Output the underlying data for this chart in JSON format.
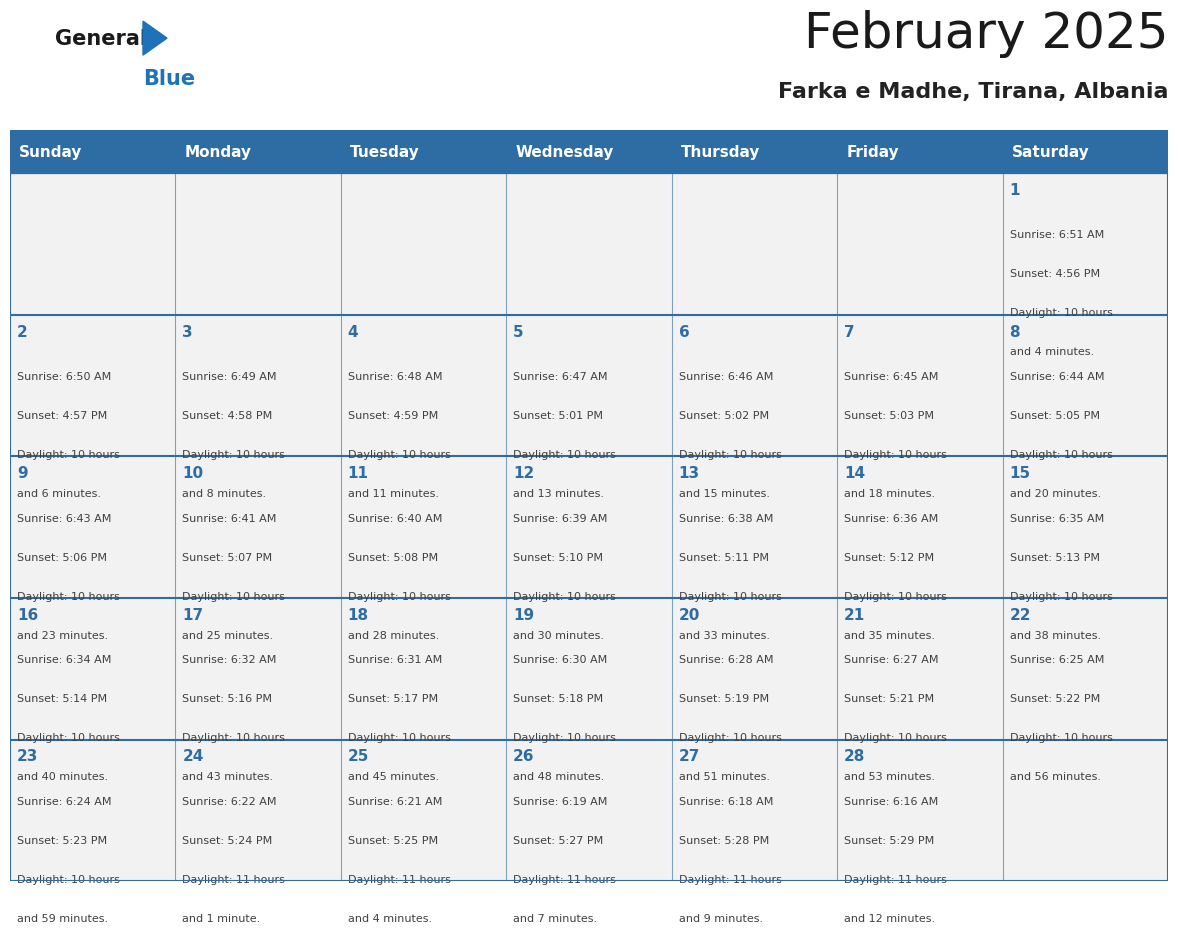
{
  "title": "February 2025",
  "subtitle": "Farka e Madhe, Tirana, Albania",
  "days_of_week": [
    "Sunday",
    "Monday",
    "Tuesday",
    "Wednesday",
    "Thursday",
    "Friday",
    "Saturday"
  ],
  "header_bg": "#2E6DA4",
  "header_text": "#FFFFFF",
  "cell_bg": "#F2F2F2",
  "border_color": "#2E6DA4",
  "day_num_color": "#2E6DA4",
  "cell_text_color": "#404040",
  "logo_general_color": "#1a1a1a",
  "logo_blue_color": "#1E72B8",
  "weeks": [
    [
      {
        "day": null,
        "info": ""
      },
      {
        "day": null,
        "info": ""
      },
      {
        "day": null,
        "info": ""
      },
      {
        "day": null,
        "info": ""
      },
      {
        "day": null,
        "info": ""
      },
      {
        "day": null,
        "info": ""
      },
      {
        "day": 1,
        "info": "Sunrise: 6:51 AM\nSunset: 4:56 PM\nDaylight: 10 hours\nand 4 minutes."
      }
    ],
    [
      {
        "day": 2,
        "info": "Sunrise: 6:50 AM\nSunset: 4:57 PM\nDaylight: 10 hours\nand 6 minutes."
      },
      {
        "day": 3,
        "info": "Sunrise: 6:49 AM\nSunset: 4:58 PM\nDaylight: 10 hours\nand 8 minutes."
      },
      {
        "day": 4,
        "info": "Sunrise: 6:48 AM\nSunset: 4:59 PM\nDaylight: 10 hours\nand 11 minutes."
      },
      {
        "day": 5,
        "info": "Sunrise: 6:47 AM\nSunset: 5:01 PM\nDaylight: 10 hours\nand 13 minutes."
      },
      {
        "day": 6,
        "info": "Sunrise: 6:46 AM\nSunset: 5:02 PM\nDaylight: 10 hours\nand 15 minutes."
      },
      {
        "day": 7,
        "info": "Sunrise: 6:45 AM\nSunset: 5:03 PM\nDaylight: 10 hours\nand 18 minutes."
      },
      {
        "day": 8,
        "info": "Sunrise: 6:44 AM\nSunset: 5:05 PM\nDaylight: 10 hours\nand 20 minutes."
      }
    ],
    [
      {
        "day": 9,
        "info": "Sunrise: 6:43 AM\nSunset: 5:06 PM\nDaylight: 10 hours\nand 23 minutes."
      },
      {
        "day": 10,
        "info": "Sunrise: 6:41 AM\nSunset: 5:07 PM\nDaylight: 10 hours\nand 25 minutes."
      },
      {
        "day": 11,
        "info": "Sunrise: 6:40 AM\nSunset: 5:08 PM\nDaylight: 10 hours\nand 28 minutes."
      },
      {
        "day": 12,
        "info": "Sunrise: 6:39 AM\nSunset: 5:10 PM\nDaylight: 10 hours\nand 30 minutes."
      },
      {
        "day": 13,
        "info": "Sunrise: 6:38 AM\nSunset: 5:11 PM\nDaylight: 10 hours\nand 33 minutes."
      },
      {
        "day": 14,
        "info": "Sunrise: 6:36 AM\nSunset: 5:12 PM\nDaylight: 10 hours\nand 35 minutes."
      },
      {
        "day": 15,
        "info": "Sunrise: 6:35 AM\nSunset: 5:13 PM\nDaylight: 10 hours\nand 38 minutes."
      }
    ],
    [
      {
        "day": 16,
        "info": "Sunrise: 6:34 AM\nSunset: 5:14 PM\nDaylight: 10 hours\nand 40 minutes."
      },
      {
        "day": 17,
        "info": "Sunrise: 6:32 AM\nSunset: 5:16 PM\nDaylight: 10 hours\nand 43 minutes."
      },
      {
        "day": 18,
        "info": "Sunrise: 6:31 AM\nSunset: 5:17 PM\nDaylight: 10 hours\nand 45 minutes."
      },
      {
        "day": 19,
        "info": "Sunrise: 6:30 AM\nSunset: 5:18 PM\nDaylight: 10 hours\nand 48 minutes."
      },
      {
        "day": 20,
        "info": "Sunrise: 6:28 AM\nSunset: 5:19 PM\nDaylight: 10 hours\nand 51 minutes."
      },
      {
        "day": 21,
        "info": "Sunrise: 6:27 AM\nSunset: 5:21 PM\nDaylight: 10 hours\nand 53 minutes."
      },
      {
        "day": 22,
        "info": "Sunrise: 6:25 AM\nSunset: 5:22 PM\nDaylight: 10 hours\nand 56 minutes."
      }
    ],
    [
      {
        "day": 23,
        "info": "Sunrise: 6:24 AM\nSunset: 5:23 PM\nDaylight: 10 hours\nand 59 minutes."
      },
      {
        "day": 24,
        "info": "Sunrise: 6:22 AM\nSunset: 5:24 PM\nDaylight: 11 hours\nand 1 minute."
      },
      {
        "day": 25,
        "info": "Sunrise: 6:21 AM\nSunset: 5:25 PM\nDaylight: 11 hours\nand 4 minutes."
      },
      {
        "day": 26,
        "info": "Sunrise: 6:19 AM\nSunset: 5:27 PM\nDaylight: 11 hours\nand 7 minutes."
      },
      {
        "day": 27,
        "info": "Sunrise: 6:18 AM\nSunset: 5:28 PM\nDaylight: 11 hours\nand 9 minutes."
      },
      {
        "day": 28,
        "info": "Sunrise: 6:16 AM\nSunset: 5:29 PM\nDaylight: 11 hours\nand 12 minutes."
      },
      {
        "day": null,
        "info": ""
      }
    ]
  ]
}
